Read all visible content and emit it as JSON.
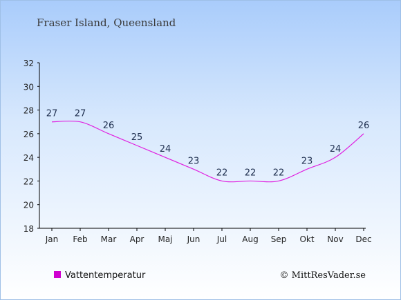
{
  "chart_data": {
    "type": "line",
    "title": "Fraser Island, Queensland",
    "categories": [
      "Jan",
      "Feb",
      "Mar",
      "Apr",
      "Maj",
      "Jun",
      "Jul",
      "Aug",
      "Sep",
      "Okt",
      "Nov",
      "Dec"
    ],
    "series": [
      {
        "name": "Vattentemperatur",
        "values": [
          27,
          27,
          26,
          25,
          24,
          23,
          22,
          22,
          22,
          23,
          24,
          26
        ],
        "color": "#e020e0"
      }
    ],
    "ylim": [
      18,
      32
    ],
    "yticks": [
      18,
      20,
      22,
      24,
      26,
      28,
      30,
      32
    ],
    "xlabel": "",
    "ylabel": "",
    "grid": false,
    "legend": "bottom-left"
  },
  "credit": "© MittResVader.se"
}
